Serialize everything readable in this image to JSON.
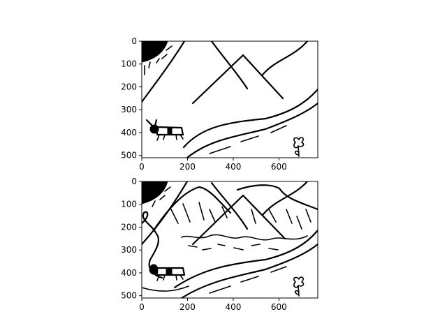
{
  "chart_data": [
    {
      "type": "image",
      "title": "",
      "xlabel": "",
      "ylabel": "",
      "xlim": [
        0,
        770
      ],
      "ylim": [
        510,
        0
      ],
      "x_ticks": [
        0,
        200,
        400,
        600
      ],
      "y_ticks": [
        0,
        100,
        200,
        300,
        400,
        500
      ],
      "grid": false,
      "image_style": "simple line sketch"
    },
    {
      "type": "image",
      "title": "",
      "xlabel": "",
      "ylabel": "",
      "xlim": [
        0,
        770
      ],
      "ylim": [
        510,
        0
      ],
      "x_ticks": [
        0,
        200,
        400,
        600
      ],
      "y_ticks": [
        0,
        100,
        200,
        300,
        400,
        500
      ],
      "grid": false,
      "image_style": "detailed line drawing"
    }
  ],
  "colors": {
    "ink": "#000000",
    "background": "#ffffff"
  }
}
